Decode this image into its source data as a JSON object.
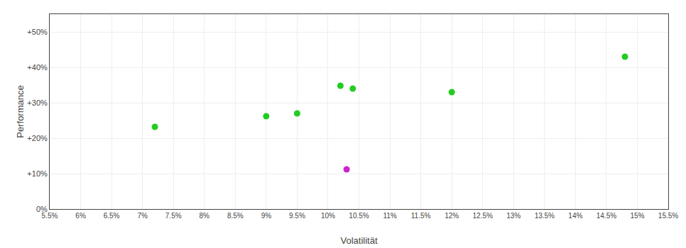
{
  "chart_data": {
    "type": "scatter",
    "xlabel": "Volatilität",
    "ylabel": "Performance",
    "xlim": [
      0.055,
      0.155
    ],
    "ylim": [
      0.0,
      0.55
    ],
    "xticks": [
      {
        "value": 0.055,
        "label": "5.5%"
      },
      {
        "value": 0.06,
        "label": "6%"
      },
      {
        "value": 0.065,
        "label": "6.5%"
      },
      {
        "value": 0.07,
        "label": "7%"
      },
      {
        "value": 0.075,
        "label": "7.5%"
      },
      {
        "value": 0.08,
        "label": "8%"
      },
      {
        "value": 0.085,
        "label": "8.5%"
      },
      {
        "value": 0.09,
        "label": "9%"
      },
      {
        "value": 0.095,
        "label": "9.5%"
      },
      {
        "value": 0.1,
        "label": "10%"
      },
      {
        "value": 0.105,
        "label": "10.5%"
      },
      {
        "value": 0.11,
        "label": "11%"
      },
      {
        "value": 0.115,
        "label": "11.5%"
      },
      {
        "value": 0.12,
        "label": "12%"
      },
      {
        "value": 0.125,
        "label": "12.5%"
      },
      {
        "value": 0.13,
        "label": "13%"
      },
      {
        "value": 0.135,
        "label": "13.5%"
      },
      {
        "value": 0.14,
        "label": "14%"
      },
      {
        "value": 0.145,
        "label": "14.5%"
      },
      {
        "value": 0.15,
        "label": "15%"
      },
      {
        "value": 0.155,
        "label": "15.5%"
      }
    ],
    "yticks": [
      {
        "value": 0.0,
        "label": "0%"
      },
      {
        "value": 0.1,
        "label": "+10%"
      },
      {
        "value": 0.2,
        "label": "+20%"
      },
      {
        "value": 0.3,
        "label": "+30%"
      },
      {
        "value": 0.4,
        "label": "+40%"
      },
      {
        "value": 0.5,
        "label": "+50%"
      }
    ],
    "grid": true,
    "marker": "circle",
    "series": [
      {
        "color": "#22cc22",
        "x": [
          0.072,
          0.09,
          0.095,
          0.102,
          0.104,
          0.12,
          0.148
        ],
        "values": [
          0.232,
          0.262,
          0.27,
          0.348,
          0.34,
          0.33,
          0.43
        ]
      },
      {
        "color": "#cc22cc",
        "x": [
          0.103
        ],
        "values": [
          0.112
        ]
      }
    ]
  }
}
